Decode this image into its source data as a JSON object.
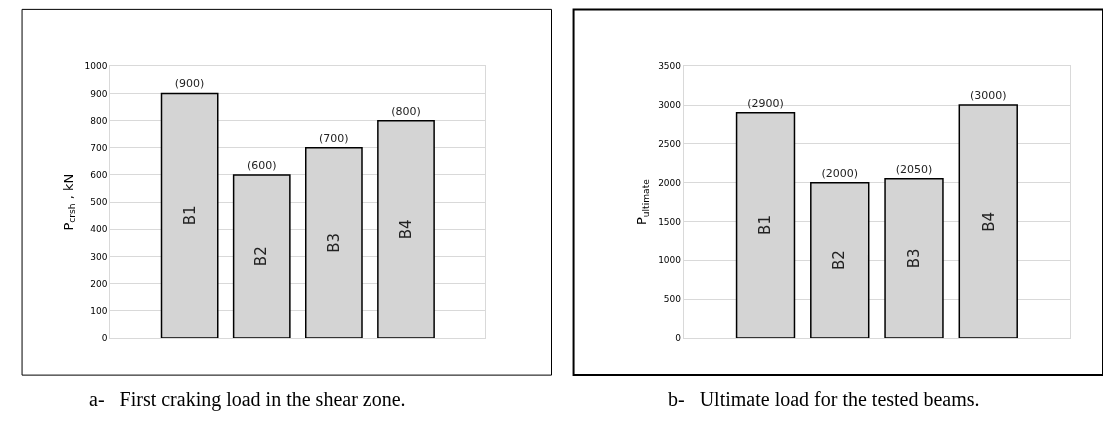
{
  "chart_data": [
    {
      "type": "bar",
      "title": "a-   First craking load in the shear zone.",
      "ylabel": "P$_{crsh}$ , kN",
      "categories": [
        "B1",
        "B2",
        "B3",
        "B4"
      ],
      "values": [
        900,
        600,
        700,
        800
      ],
      "value_labels": [
        "(900)",
        "(600)",
        "(700)",
        "(800)"
      ],
      "color": "#d4d4d4",
      "ylim": [
        0,
        1000
      ],
      "yticks": [
        0,
        100,
        200,
        300,
        400,
        500,
        600,
        700,
        800,
        900,
        1000
      ],
      "grid": "y",
      "tick_labels": "y"
    },
    {
      "type": "bar",
      "title": "b-   Ultimate load for the tested beams.",
      "ylabel": "P$_{ultimate}$",
      "categories": [
        "B1",
        "B2",
        "B3",
        "B4"
      ],
      "values": [
        2900,
        2000,
        2050,
        3000
      ],
      "value_labels": [
        "(2900)",
        "(2000)",
        "(2050)",
        "(3000)"
      ],
      "color": "#d4d4d4",
      "ylim": [
        0,
        3500
      ],
      "yticks": [
        0,
        500,
        1000,
        1500,
        2000,
        2500,
        3000,
        3500
      ],
      "grid": "y",
      "tick_labels": "y"
    }
  ]
}
